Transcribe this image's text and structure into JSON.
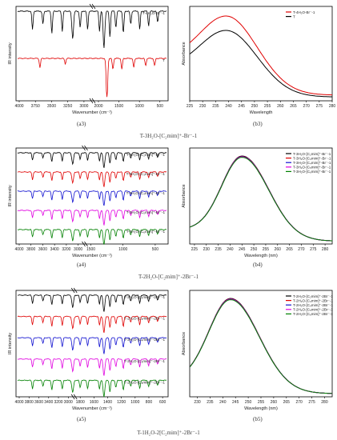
{
  "chart_data": [
    {
      "type": "line",
      "id": "a3",
      "ylabel": "IR intensity",
      "xlabel": "Wavenumber (cm⁻¹)",
      "x_ticks": [
        "4000",
        "3750",
        "3500",
        "3250",
        "3000",
        "2000",
        "1500",
        "1000",
        "500"
      ],
      "series": [
        {
          "name": "T-4H₂O-Br⁻-1",
          "color": "#000000"
        },
        {
          "name": "T",
          "color": "#e00000"
        }
      ]
    },
    {
      "type": "line",
      "id": "b3",
      "ylabel": "Absorbance",
      "xlabel": "Wavelength",
      "xlim": [
        225,
        280
      ],
      "x_ticks": [
        "225",
        "230",
        "235",
        "240",
        "245",
        "250",
        "255",
        "260",
        "265",
        "270",
        "275",
        "280"
      ],
      "legend_position": "top-right",
      "series": [
        {
          "name": "T-4H₂O-Br⁻-1",
          "color": "#e00000",
          "peak_x": 239
        },
        {
          "name": "T",
          "color": "#000000",
          "peak_x": 239
        }
      ]
    },
    {
      "type": "line",
      "id": "a4",
      "ylabel": "IR intensity",
      "xlabel": "Wavenumber (cm⁻¹)",
      "x_ticks": [
        "4000",
        "3800",
        "3600",
        "3400",
        "3200",
        "3000",
        "1500",
        "1000",
        "500"
      ],
      "series": [
        {
          "name": "T-3H₂O-[C₂mim]⁺-Br⁻-1",
          "color": "#000000"
        },
        {
          "name": "T-3H₂O-[C₃mim]⁺-Br⁻-1",
          "color": "#e00000"
        },
        {
          "name": "T-3H₂O-[C₄mim]⁺-Br⁻-1",
          "color": "#1010d0"
        },
        {
          "name": "T-3H₂O-[C₅mim]⁺-Br⁻-1",
          "color": "#e000e0"
        },
        {
          "name": "T-3H₂O-[C₆mim]⁺-Br⁻-1",
          "color": "#008000"
        }
      ]
    },
    {
      "type": "line",
      "id": "b4",
      "ylabel": "Absorbance",
      "xlabel": "Wavelength (nm)",
      "xlim": [
        223,
        283
      ],
      "x_ticks": [
        "225",
        "230",
        "235",
        "240",
        "245",
        "250",
        "255",
        "260",
        "265",
        "270",
        "275",
        "280"
      ],
      "legend_position": "top-right",
      "series": [
        {
          "name": "T-3H₂O-[C₂mim]⁺-Br⁻-1",
          "color": "#000000",
          "peak_x": 245
        },
        {
          "name": "T-3H₂O-[C₃mim]⁺-Br⁻-1",
          "color": "#e00000",
          "peak_x": 245
        },
        {
          "name": "T-3H₂O-[C₄mim]⁺-Br⁻-1",
          "color": "#1010d0",
          "peak_x": 245
        },
        {
          "name": "T-3H₂O-[C₅mim]⁺-Br⁻-1",
          "color": "#e000e0",
          "peak_x": 245
        },
        {
          "name": "T-3H₂O-[C₆mim]⁺-Br⁻-1",
          "color": "#008000",
          "peak_x": 245
        }
      ]
    },
    {
      "type": "line",
      "id": "a5",
      "ylabel": "IR intensity",
      "xlabel": "Wavenumber (cm⁻¹)",
      "x_ticks": [
        "4000",
        "3800",
        "3600",
        "3400",
        "3200",
        "3000",
        "1800",
        "1600",
        "1400",
        "1200",
        "1000",
        "800",
        "600"
      ],
      "series": [
        {
          "name": "T-2H₂O-[C₂mim]⁺-2Br⁻-1",
          "color": "#000000"
        },
        {
          "name": "T-2H₂O-[C₃mim]⁺-2Br⁻-1",
          "color": "#e00000"
        },
        {
          "name": "T-2H₂O-[C₄mim]⁺-2Br⁻-1",
          "color": "#1010d0"
        },
        {
          "name": "T-2H₂O-[C₅mim]⁺-2Br⁻-1",
          "color": "#e000e0"
        },
        {
          "name": "T-2H₂O-[C₆mim]⁺-2Br⁻-1",
          "color": "#008000"
        }
      ]
    },
    {
      "type": "line",
      "id": "b5",
      "ylabel": "Absorbance",
      "xlabel": "Wavelength (nm)",
      "xlim": [
        227,
        283
      ],
      "x_ticks": [
        "230",
        "235",
        "240",
        "245",
        "250",
        "255",
        "260",
        "265",
        "270",
        "275",
        "280"
      ],
      "legend_position": "top-right",
      "series": [
        {
          "name": "T-2H₂O-[C₂mim]⁺-2Br⁻-1",
          "color": "#000000",
          "peak_x": 243
        },
        {
          "name": "T-2H₂O-[C₃mim]⁺-2Br⁻-1",
          "color": "#e00000",
          "peak_x": 243
        },
        {
          "name": "T-2H₂O-[C₄mim]⁺-2Br⁻-1",
          "color": "#1010d0",
          "peak_x": 243
        },
        {
          "name": "T-2H₂O-[C₅mim]⁺-2Br⁻-1",
          "color": "#e000e0",
          "peak_x": 243
        },
        {
          "name": "T-2H₂O-[C₆mim]⁺-2Br⁻-1",
          "color": "#008000",
          "peak_x": 243
        }
      ]
    }
  ],
  "captions": [
    "(a3)",
    "(b3)",
    "(a4)",
    "(b4)",
    "(a5)",
    "(b5)"
  ],
  "titles": [
    "T-3H₂O-[C₂mim]⁺-Br⁻-1",
    "T-2H₂O-[C₂mim]⁺-2Br⁻-1",
    "T-1H₂O-2[C₂mim]⁺-2Br⁻-1"
  ]
}
